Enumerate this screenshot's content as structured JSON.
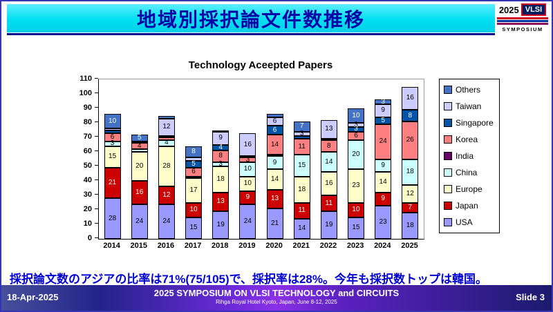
{
  "slide": {
    "title": "地域別採択論文件数推移",
    "logo": {
      "year": "2025",
      "name": "VLSI",
      "subtitle": "SYMPOSIUM"
    },
    "summary": "採択論文数のアジアの比率は71%(75/105)で、採択率は28%。今年も採択数トップは韓国。",
    "footer": {
      "date": "18-Apr-2025",
      "conference": "2025 SYMPOSIUM ON VLSI TECHNOLOGY and CIRCUITS",
      "venue": "Rihga Royal Hotel Kyoto, Japan, June 8-12, 2025",
      "slide_number": "Slide 3"
    }
  },
  "chart_data": {
    "type": "bar",
    "stacked": true,
    "title": "Technology Aceepted Papers",
    "categories": [
      "2014",
      "2015",
      "2016",
      "2017",
      "2018",
      "2019",
      "2020",
      "2021",
      "2022",
      "2023",
      "2024",
      "2025"
    ],
    "series_order": "bottom_to_top",
    "series": [
      {
        "name": "USA",
        "color": "#9999FF",
        "label_color": "#000000",
        "values": [
          28,
          24,
          24,
          15,
          19,
          24,
          21,
          14,
          19,
          15,
          23,
          18
        ]
      },
      {
        "name": "Japan",
        "color": "#CC0000",
        "label_color": "#FFFFFF",
        "values": [
          21,
          16,
          12,
          10,
          13,
          9,
          13,
          11,
          11,
          10,
          9,
          7
        ]
      },
      {
        "name": "Europe",
        "color": "#FFFFCC",
        "label_color": "#000000",
        "values": [
          15,
          20,
          28,
          17,
          18,
          10,
          14,
          18,
          16,
          23,
          14,
          12
        ]
      },
      {
        "name": "China",
        "color": "#CCFFFF",
        "label_color": "#000000",
        "values": [
          3,
          2,
          4,
          1,
          3,
          10,
          9,
          15,
          14,
          20,
          9,
          18
        ]
      },
      {
        "name": "India",
        "color": "#660066",
        "label_color": "#FFFFFF",
        "values": [
          0,
          0,
          0,
          0,
          0,
          0,
          1,
          0,
          0,
          0,
          0,
          0
        ]
      },
      {
        "name": "Korea",
        "color": "#FF8080",
        "label_color": "#000000",
        "values": [
          6,
          4,
          2,
          6,
          8,
          3,
          14,
          11,
          8,
          6,
          24,
          26
        ]
      },
      {
        "name": "Singapore",
        "color": "#0054A6",
        "label_color": "#FFFFFF",
        "values": [
          2,
          1,
          1,
          5,
          4,
          1,
          6,
          2,
          1,
          3,
          5,
          8
        ]
      },
      {
        "name": "Taiwan",
        "color": "#CCCCFF",
        "label_color": "#000000",
        "values": [
          1,
          0,
          12,
          2,
          9,
          16,
          6,
          3,
          13,
          3,
          9,
          16
        ]
      },
      {
        "name": "Others",
        "color": "#4472C4",
        "label_color": "#FFFFFF",
        "values": [
          10,
          5,
          2,
          8,
          1,
          0,
          2,
          7,
          0,
          10,
          3,
          0
        ]
      }
    ],
    "legend_order_top_to_bottom": [
      "Others",
      "Taiwan",
      "Singapore",
      "Korea",
      "India",
      "China",
      "Europe",
      "Japan",
      "USA"
    ],
    "ylim": [
      0,
      110
    ],
    "ytick_step": 10,
    "legend_position": "right",
    "gridlines": false
  }
}
